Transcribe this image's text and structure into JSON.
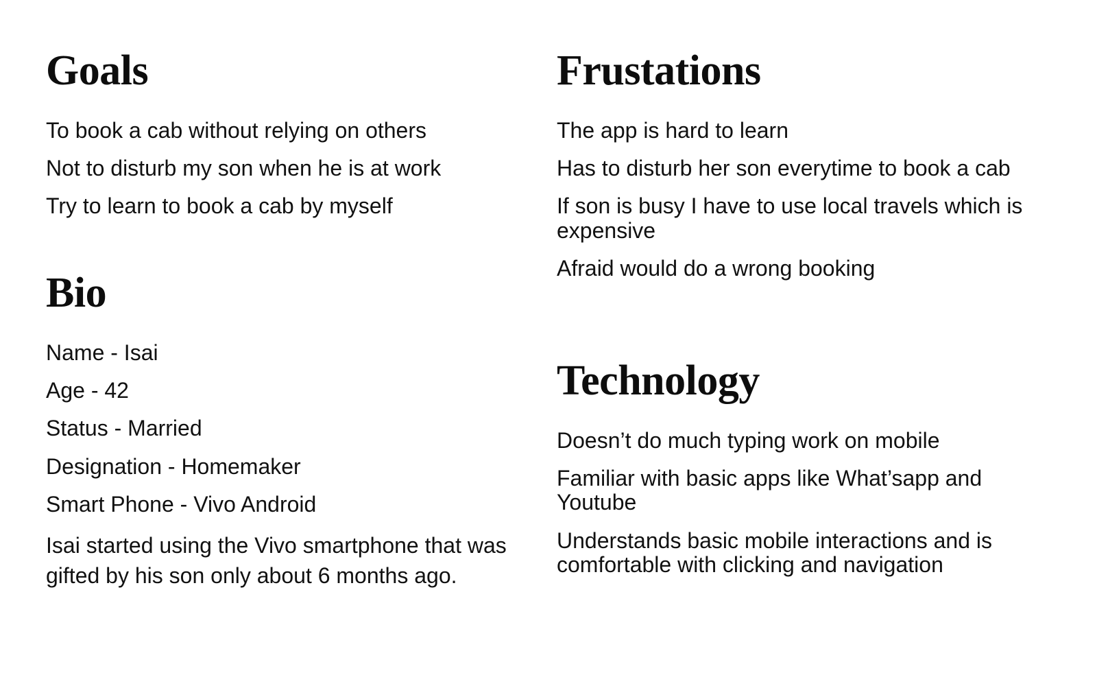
{
  "goals": {
    "title": "Goals",
    "items": [
      "To book a cab without relying on others",
      "Not to disturb my son when he is at work",
      "Try to learn to book a cab by myself"
    ]
  },
  "bio": {
    "title": "Bio",
    "items": [
      "Name - Isai",
      "Age - 42",
      "Status - Married",
      "Designation - Homemaker",
      "Smart Phone - Vivo Android"
    ],
    "description": "Isai started using the Vivo smartphone that was gifted by his son only about 6 months ago."
  },
  "frustrations": {
    "title": "Frustations",
    "items": [
      "The app is hard to learn",
      "Has to disturb her son everytime to book a cab",
      "If son is busy I have to use local travels which is expensive",
      "Afraid would do a wrong booking"
    ]
  },
  "technology": {
    "title": "Technology",
    "items": [
      "Doesn’t do much typing work on mobile",
      "Familiar with basic apps like What’sapp and Youtube",
      "Understands basic mobile interactions and is comfortable with clicking and navigation"
    ]
  }
}
